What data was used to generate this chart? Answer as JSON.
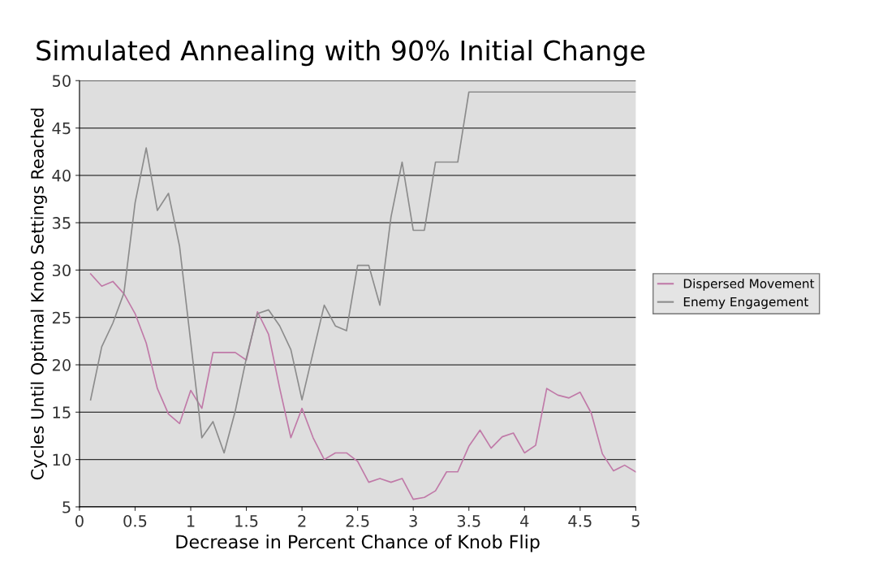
{
  "chart_data": {
    "type": "line",
    "title": "Simulated Annealing with 90% Initial Change",
    "xlabel": "Decrease in Percent Chance of Knob Flip",
    "ylabel": "Cycles Until Optimal Knob Settings Reached",
    "x": [
      0.1,
      0.2,
      0.3,
      0.4,
      0.5,
      0.6,
      0.7,
      0.8,
      0.9,
      1.0,
      1.1,
      1.2,
      1.3,
      1.4,
      1.5,
      1.6,
      1.7,
      1.8,
      1.9,
      2.0,
      2.1,
      2.2,
      2.3,
      2.4,
      2.5,
      2.6,
      2.7,
      2.8,
      2.9,
      3.0,
      3.1,
      3.2,
      3.3,
      3.4,
      3.5,
      3.6,
      3.7,
      3.8,
      3.9,
      4.0,
      4.1,
      4.2,
      4.3,
      4.4,
      4.5,
      4.6,
      4.7,
      4.8,
      4.9,
      5.0
    ],
    "series": [
      {
        "name": "Dispersed Movement",
        "color": "#c07aa8",
        "values": [
          29.6,
          28.3,
          28.8,
          27.5,
          25.4,
          22.3,
          17.5,
          14.8,
          13.8,
          17.3,
          15.4,
          21.3,
          21.3,
          21.3,
          20.5,
          25.6,
          23.2,
          17.5,
          12.3,
          15.4,
          12.3,
          10.0,
          10.7,
          10.7,
          9.8,
          7.6,
          8.0,
          7.6,
          8.0,
          5.8,
          6.0,
          6.7,
          8.7,
          8.7,
          11.4,
          13.1,
          11.2,
          12.4,
          12.8,
          10.7,
          11.5,
          17.5,
          16.8,
          16.5,
          17.1,
          14.9,
          10.6,
          8.8,
          9.4,
          8.7
        ]
      },
      {
        "name": "Enemy Engagement",
        "color": "#8c8c8c",
        "values": [
          16.3,
          21.9,
          24.4,
          27.6,
          37.1,
          42.9,
          36.3,
          38.1,
          32.5,
          22.4,
          12.3,
          14.0,
          10.7,
          15.1,
          20.7,
          25.4,
          25.8,
          24.1,
          21.6,
          16.3,
          21.3,
          26.3,
          24.1,
          23.6,
          30.5,
          30.5,
          26.3,
          35.6,
          41.4,
          34.2,
          34.2,
          41.4,
          41.4,
          41.4,
          48.8,
          48.8,
          48.8,
          48.8,
          48.8,
          48.8,
          48.8,
          48.8,
          48.8,
          48.8,
          48.8,
          48.8,
          48.8,
          48.8,
          48.8,
          48.8
        ]
      }
    ],
    "xlim": [
      0,
      5
    ],
    "xticks": [
      0,
      0.5,
      1,
      1.5,
      2,
      2.5,
      3,
      3.5,
      4,
      4.5,
      5
    ],
    "ylim": [
      5,
      50
    ],
    "yticks": [
      5,
      10,
      15,
      20,
      25,
      30,
      35,
      40,
      45,
      50
    ],
    "grid": "y",
    "legend": "right",
    "marker": "none",
    "line_style": "solid"
  }
}
